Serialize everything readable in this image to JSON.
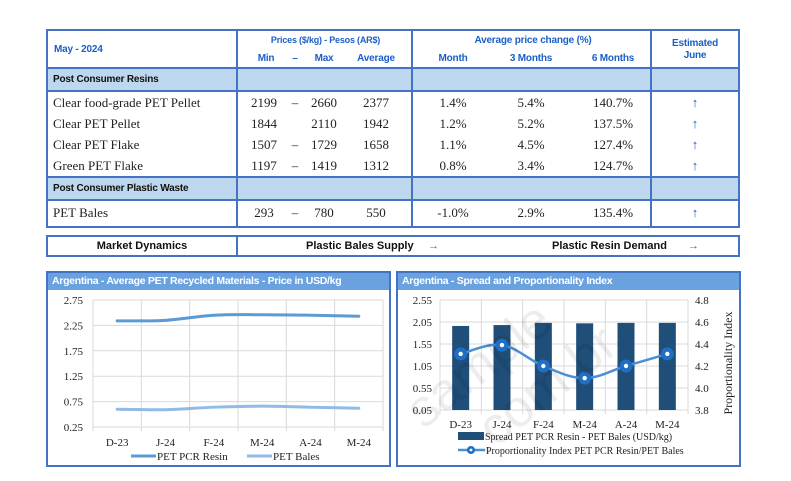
{
  "table": {
    "period": "May - 2024",
    "prices_header": "Prices ($/kg) - Pesos (AR$)",
    "col_min": "Min",
    "col_dash": "–",
    "col_max": "Max",
    "col_average": "Average",
    "change_header": "Average price change (%)",
    "col_month": "Month",
    "col_3months": "3 Months",
    "col_6months": "6 Months",
    "estimated_line1": "Estimated",
    "estimated_line2": "June",
    "sections": [
      {
        "title": "Post Consumer Resins",
        "rows": [
          {
            "name": "Clear food-grade PET Pellet",
            "min": "2199",
            "dash": "–",
            "max": "2660",
            "avg": "2377",
            "month": "1.4%",
            "m3": "5.4%",
            "m6": "140.7%",
            "trend": "↑",
            "trend_icon": "arrow-up"
          },
          {
            "name": "Clear PET Pellet",
            "min": "1844",
            "dash": "",
            "max": "2110",
            "avg": "1942",
            "month": "1.2%",
            "m3": "5.2%",
            "m6": "137.5%",
            "trend": "↑",
            "trend_icon": "arrow-up"
          },
          {
            "name": "Clear PET Flake",
            "min": "1507",
            "dash": "–",
            "max": "1729",
            "avg": "1658",
            "month": "1.1%",
            "m3": "4.5%",
            "m6": "127.4%",
            "trend": "↑",
            "trend_icon": "arrow-up"
          },
          {
            "name": "Green PET Flake",
            "min": "1197",
            "dash": "–",
            "max": "1419",
            "avg": "1312",
            "month": "0.8%",
            "m3": "3.4%",
            "m6": "124.7%",
            "trend": "↑",
            "trend_icon": "arrow-up"
          }
        ]
      },
      {
        "title": "Post Consumer Plastic Waste",
        "rows": [
          {
            "name": "PET Bales",
            "min": "293",
            "dash": "–",
            "max": "780",
            "avg": "550",
            "month": "-1.0%",
            "m3": "2.9%",
            "m6": "135.4%",
            "trend": "↑",
            "trend_icon": "arrow-up"
          }
        ]
      }
    ]
  },
  "market": {
    "label": "Market Dynamics",
    "supply_label": "Plastic Bales Supply",
    "supply_trend": "→",
    "demand_label": "Plastic Resin Demand",
    "demand_trend": "→"
  },
  "watermark": {
    "line1": "sample",
    "line2": ".com.br"
  },
  "chart_data": [
    {
      "type": "line",
      "title": "Argentina - Average PET Recycled Materials - Price in USD/kg",
      "categories": [
        "D-23",
        "J-24",
        "F-24",
        "M-24",
        "A-24",
        "M-24"
      ],
      "series": [
        {
          "name": "PET PCR Resin",
          "color": "#5b9bd5",
          "values": [
            2.34,
            2.35,
            2.45,
            2.46,
            2.45,
            2.43
          ]
        },
        {
          "name": "PET Bales",
          "color": "#8fbbe6",
          "values": [
            0.6,
            0.59,
            0.64,
            0.66,
            0.64,
            0.62
          ]
        }
      ],
      "yticks": [
        "0.25",
        "0.75",
        "1.25",
        "1.75",
        "2.25",
        "2.75"
      ],
      "ylim": [
        0.25,
        2.75
      ],
      "xlabel": "",
      "ylabel": "",
      "grid": true,
      "legend": "bottom"
    },
    {
      "type": "bar",
      "title": "Argentina - Spread and Proportionality Index",
      "categories": [
        "D-23",
        "J-24",
        "F-24",
        "M-24",
        "A-24",
        "M-24"
      ],
      "series": [
        {
          "name": "Spread PET PCR Resin - PET Bales (USD/kg)",
          "kind": "bar",
          "axis": "left",
          "color": "#1f4e79",
          "values": [
            1.96,
            1.98,
            2.03,
            2.02,
            2.03,
            2.03
          ]
        },
        {
          "name": "Proportionality Index PET PCR Resin/PET Bales",
          "kind": "line",
          "axis": "right",
          "color": "#4a90d9",
          "marker_color": "#1f6fc5",
          "values": [
            4.31,
            4.39,
            4.2,
            4.09,
            4.2,
            4.31
          ]
        }
      ],
      "yticks_left": [
        "0.05",
        "0.55",
        "1.05",
        "1.55",
        "2.05",
        "2.55"
      ],
      "ylim_left": [
        0.05,
        2.55
      ],
      "yticks_right": [
        "3.8",
        "4.0",
        "4.2",
        "4.4",
        "4.6",
        "4.8"
      ],
      "ylim_right": [
        3.8,
        4.8
      ],
      "ylabel_right": "Proportionality Index",
      "grid": true,
      "legend": "bottom"
    }
  ]
}
